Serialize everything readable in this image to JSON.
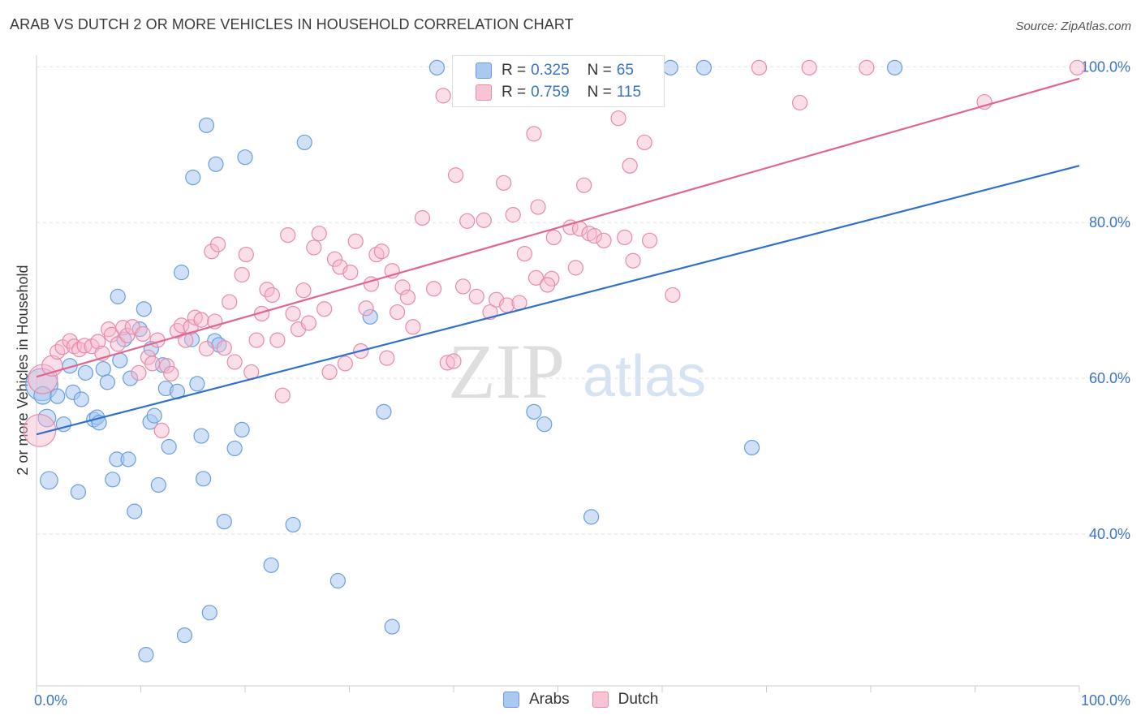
{
  "header": {
    "title": "ARAB VS DUTCH 2 OR MORE VEHICLES IN HOUSEHOLD CORRELATION CHART",
    "source": "Source: ZipAtlas.com"
  },
  "watermark": {
    "zip": "ZIP",
    "atlas": "atlas"
  },
  "legend": {
    "arabs": {
      "r_label": "R = ",
      "r_value": "0.325",
      "n_label": "N = ",
      "n_value": "65"
    },
    "dutch": {
      "r_label": "R = ",
      "r_value": "0.759",
      "n_label": "N = ",
      "n_value": "115"
    }
  },
  "bottom_legend": {
    "arabs": "Arabs",
    "dutch": "Dutch"
  },
  "colors": {
    "arabs_fill": "#aac8f0",
    "arabs_stroke": "#6a9ee0",
    "arabs_line": "#2f6fcf",
    "dutch_fill": "#f7b8cc",
    "dutch_stroke": "#e88aa8",
    "dutch_line": "#e06690",
    "axis_label": "#3a75c4",
    "grid": "#e3e3e3"
  },
  "chart_data": {
    "type": "scatter",
    "title": "ARAB VS DUTCH 2 OR MORE VEHICLES IN HOUSEHOLD CORRELATION CHART",
    "xlabel": "",
    "ylabel": "2 or more Vehicles in Household",
    "xlim": [
      0,
      100
    ],
    "ylim": [
      20.5,
      101.5
    ],
    "x_tick_labels": [
      "0.0%",
      "100.0%"
    ],
    "y_ticks": [
      {
        "value": 40,
        "label": "40.0%"
      },
      {
        "value": 60,
        "label": "60.0%"
      },
      {
        "value": 80,
        "label": "80.0%"
      },
      {
        "value": 100,
        "label": "100.0%"
      }
    ],
    "grid": true,
    "series": [
      {
        "name": "Arabs",
        "r": 0.325,
        "n": 65,
        "trend": {
          "x": [
            0,
            100
          ],
          "y": [
            52.8,
            87.3
          ]
        },
        "points": [
          [
            0.5,
            59.2,
            2.2
          ],
          [
            0.6,
            57.8,
            1.2
          ],
          [
            1.0,
            54.9,
            1.2
          ],
          [
            1.2,
            46.9,
            1.2
          ],
          [
            2.0,
            57.7,
            1.0
          ],
          [
            2.6,
            54.1,
            1.0
          ],
          [
            3.2,
            61.6,
            1.0
          ],
          [
            3.5,
            58.2,
            1.0
          ],
          [
            4.0,
            45.4,
            1.0
          ],
          [
            4.3,
            57.3,
            1.0
          ],
          [
            4.7,
            60.7,
            1.0
          ],
          [
            5.5,
            54.7,
            1.0
          ],
          [
            5.8,
            55.0,
            1.0
          ],
          [
            6.0,
            54.3,
            1.0
          ],
          [
            6.4,
            61.2,
            1.0
          ],
          [
            6.8,
            59.5,
            1.0
          ],
          [
            7.3,
            47.0,
            1.0
          ],
          [
            7.7,
            49.6,
            1.0
          ],
          [
            8.0,
            62.3,
            1.0
          ],
          [
            8.4,
            65.0,
            1.0
          ],
          [
            8.8,
            49.6,
            1.0
          ],
          [
            9.4,
            42.9,
            1.0
          ],
          [
            9.9,
            66.3,
            1.0
          ],
          [
            10.3,
            68.9,
            1.0
          ],
          [
            10.5,
            24.5,
            1.0
          ],
          [
            10.9,
            54.4,
            1.0
          ],
          [
            11.3,
            55.2,
            1.0
          ],
          [
            11.7,
            46.3,
            1.0
          ],
          [
            12.1,
            61.7,
            1.0
          ],
          [
            12.4,
            58.7,
            1.0
          ],
          [
            12.7,
            51.2,
            1.0
          ],
          [
            13.5,
            58.3,
            1.0
          ],
          [
            13.9,
            73.6,
            1.0
          ],
          [
            14.2,
            27.0,
            1.0
          ],
          [
            14.9,
            65.0,
            1.0
          ],
          [
            15.4,
            59.3,
            1.0
          ],
          [
            15.8,
            52.6,
            1.0
          ],
          [
            16.0,
            47.1,
            1.0
          ],
          [
            16.3,
            92.5,
            1.0
          ],
          [
            16.6,
            29.9,
            1.0
          ],
          [
            17.1,
            64.8,
            1.0
          ],
          [
            17.2,
            87.5,
            1.0
          ],
          [
            17.5,
            64.3,
            1.0
          ],
          [
            15.0,
            85.8,
            1.0
          ],
          [
            18.0,
            41.6,
            1.0
          ],
          [
            19.0,
            51.0,
            1.0
          ],
          [
            19.7,
            53.4,
            1.0
          ],
          [
            20.0,
            88.4,
            1.0
          ],
          [
            22.5,
            36.0,
            1.0
          ],
          [
            24.6,
            41.2,
            1.0
          ],
          [
            25.7,
            90.3,
            1.0
          ],
          [
            28.9,
            34.0,
            1.0
          ],
          [
            32.0,
            67.9,
            1.0
          ],
          [
            33.3,
            55.7,
            1.0
          ],
          [
            34.1,
            28.1,
            1.0
          ],
          [
            38.4,
            99.9,
            1.0
          ],
          [
            47.7,
            55.7,
            1.0
          ],
          [
            48.7,
            54.1,
            1.0
          ],
          [
            53.2,
            42.2,
            1.0
          ],
          [
            60.8,
            99.9,
            1.0
          ],
          [
            64.0,
            99.9,
            1.0
          ],
          [
            68.6,
            51.1,
            1.0
          ],
          [
            82.3,
            99.9,
            1.0
          ],
          [
            7.8,
            70.5,
            1.0
          ],
          [
            9.0,
            60.0,
            1.0
          ],
          [
            11.0,
            63.8,
            1.0
          ]
        ]
      },
      {
        "name": "Dutch",
        "r": 0.759,
        "n": 115,
        "trend": {
          "x": [
            0,
            100
          ],
          "y": [
            60.2,
            98.5
          ]
        },
        "points": [
          [
            0.3,
            53.3,
            2.2
          ],
          [
            0.6,
            59.9,
            2.0
          ],
          [
            1.5,
            61.6,
            1.4
          ],
          [
            2.0,
            63.4,
            1.0
          ],
          [
            2.5,
            64.0,
            1.0
          ],
          [
            3.2,
            64.8,
            1.0
          ],
          [
            3.6,
            64.1,
            1.0
          ],
          [
            4.1,
            63.7,
            1.0
          ],
          [
            4.6,
            64.2,
            1.0
          ],
          [
            5.3,
            64.1,
            1.0
          ],
          [
            5.9,
            64.7,
            1.0
          ],
          [
            6.3,
            63.2,
            1.0
          ],
          [
            6.9,
            66.3,
            1.0
          ],
          [
            7.2,
            65.6,
            1.0
          ],
          [
            7.8,
            64.4,
            1.0
          ],
          [
            8.3,
            66.5,
            1.0
          ],
          [
            8.7,
            65.5,
            1.0
          ],
          [
            9.2,
            66.6,
            1.0
          ],
          [
            9.8,
            60.7,
            1.0
          ],
          [
            10.2,
            65.7,
            1.0
          ],
          [
            10.7,
            62.7,
            1.0
          ],
          [
            11.1,
            61.9,
            1.0
          ],
          [
            11.6,
            64.9,
            1.0
          ],
          [
            12.0,
            53.3,
            1.0
          ],
          [
            12.5,
            61.6,
            1.0
          ],
          [
            12.9,
            60.6,
            1.0
          ],
          [
            13.5,
            66.1,
            1.0
          ],
          [
            13.9,
            66.8,
            1.0
          ],
          [
            14.3,
            64.9,
            1.0
          ],
          [
            14.8,
            66.6,
            1.0
          ],
          [
            15.2,
            67.8,
            1.0
          ],
          [
            15.8,
            67.5,
            1.0
          ],
          [
            16.3,
            63.8,
            1.0
          ],
          [
            16.8,
            76.3,
            1.0
          ],
          [
            17.1,
            67.3,
            1.0
          ],
          [
            17.4,
            77.2,
            1.0
          ],
          [
            18.0,
            63.9,
            1.0
          ],
          [
            18.5,
            69.8,
            1.0
          ],
          [
            19.0,
            62.1,
            1.0
          ],
          [
            19.7,
            73.3,
            1.0
          ],
          [
            20.1,
            75.9,
            1.0
          ],
          [
            20.6,
            60.8,
            1.0
          ],
          [
            21.1,
            64.9,
            1.0
          ],
          [
            21.6,
            68.3,
            1.0
          ],
          [
            22.1,
            71.4,
            1.0
          ],
          [
            22.6,
            70.7,
            1.0
          ],
          [
            23.1,
            64.9,
            1.0
          ],
          [
            23.6,
            57.8,
            1.0
          ],
          [
            24.1,
            78.4,
            1.0
          ],
          [
            24.6,
            68.3,
            1.0
          ],
          [
            25.1,
            66.3,
            1.0
          ],
          [
            25.6,
            71.3,
            1.0
          ],
          [
            26.1,
            67.1,
            1.0
          ],
          [
            26.6,
            76.8,
            1.0
          ],
          [
            27.1,
            78.6,
            1.0
          ],
          [
            27.6,
            68.9,
            1.0
          ],
          [
            28.1,
            60.8,
            1.0
          ],
          [
            28.6,
            75.3,
            1.0
          ],
          [
            29.1,
            74.3,
            1.0
          ],
          [
            29.6,
            61.9,
            1.0
          ],
          [
            30.1,
            73.6,
            1.0
          ],
          [
            30.6,
            77.6,
            1.0
          ],
          [
            31.1,
            63.5,
            1.0
          ],
          [
            31.6,
            69.0,
            1.0
          ],
          [
            32.1,
            72.1,
            1.0
          ],
          [
            32.6,
            75.9,
            1.0
          ],
          [
            33.1,
            76.3,
            1.0
          ],
          [
            33.6,
            62.6,
            1.0
          ],
          [
            34.1,
            73.8,
            1.0
          ],
          [
            34.6,
            68.5,
            1.0
          ],
          [
            35.1,
            71.7,
            1.0
          ],
          [
            35.6,
            70.4,
            1.0
          ],
          [
            36.1,
            66.6,
            1.0
          ],
          [
            37.0,
            80.6,
            1.0
          ],
          [
            38.1,
            71.5,
            1.0
          ],
          [
            39.0,
            96.3,
            1.0
          ],
          [
            39.4,
            62.0,
            1.0
          ],
          [
            40.0,
            62.2,
            1.0
          ],
          [
            40.2,
            86.1,
            1.0
          ],
          [
            40.9,
            71.8,
            1.0
          ],
          [
            41.3,
            80.2,
            1.0
          ],
          [
            42.2,
            70.5,
            1.0
          ],
          [
            42.9,
            80.3,
            1.0
          ],
          [
            43.5,
            68.5,
            1.0
          ],
          [
            44.1,
            70.1,
            1.0
          ],
          [
            44.8,
            85.1,
            1.0
          ],
          [
            45.1,
            69.4,
            1.0
          ],
          [
            45.7,
            81.0,
            1.0
          ],
          [
            46.3,
            69.7,
            1.0
          ],
          [
            46.8,
            76.0,
            1.0
          ],
          [
            47.7,
            91.4,
            1.0
          ],
          [
            47.9,
            72.9,
            1.0
          ],
          [
            48.1,
            82.0,
            1.0
          ],
          [
            49.4,
            72.8,
            1.0
          ],
          [
            49.6,
            78.1,
            1.0
          ],
          [
            51.2,
            79.4,
            1.0
          ],
          [
            51.7,
            74.2,
            1.0
          ],
          [
            52.1,
            79.2,
            1.0
          ],
          [
            52.5,
            84.8,
            1.0
          ],
          [
            53.0,
            78.6,
            1.0
          ],
          [
            53.5,
            78.3,
            1.0
          ],
          [
            54.4,
            77.7,
            1.0
          ],
          [
            55.8,
            93.4,
            1.0
          ],
          [
            56.4,
            78.1,
            1.0
          ],
          [
            56.9,
            87.3,
            1.0
          ],
          [
            57.2,
            75.1,
            1.0
          ],
          [
            58.3,
            90.3,
            1.0
          ],
          [
            58.8,
            77.7,
            1.0
          ],
          [
            61.0,
            70.7,
            1.0
          ],
          [
            69.3,
            99.9,
            1.0
          ],
          [
            73.2,
            95.4,
            1.0
          ],
          [
            74.1,
            99.9,
            1.0
          ],
          [
            79.6,
            99.9,
            1.0
          ],
          [
            90.9,
            95.5,
            1.0
          ],
          [
            99.8,
            99.9,
            1.0
          ],
          [
            49.0,
            72.0,
            1.0
          ]
        ]
      }
    ]
  }
}
